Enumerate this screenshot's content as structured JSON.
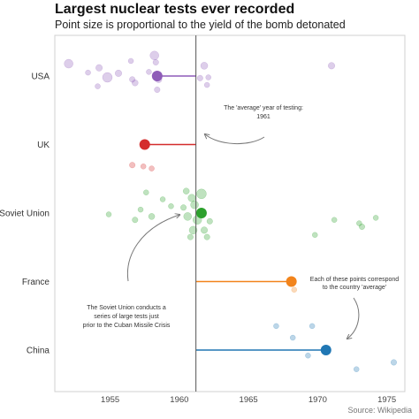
{
  "header": {
    "title": "Largest nuclear tests ever recorded",
    "subtitle": "Point size is proportional to the yield of the bomb detonated",
    "caption": "Source: Wikipedia"
  },
  "annotations": {
    "avg_year_line1": "The 'average' year of testing:",
    "avg_year_line2": "1961",
    "country_avg_line1": "Each of these points correspond",
    "country_avg_line2": "to the country 'average'",
    "soviet_line1": "The Soviet Union conducts a",
    "soviet_line2": "series of large tests just",
    "soviet_line3": "prior to the Cuban Missile Crisis"
  },
  "colors": {
    "USA": "#8e5cb8",
    "UK": "#d42c2c",
    "Soviet Union": "#2ca02c",
    "France": "#f2841c",
    "China": "#2077b4"
  },
  "chart_data": {
    "type": "scatter",
    "title": "Largest nuclear tests ever recorded",
    "subtitle": "Point size is proportional to the yield of the bomb detonated",
    "xlabel": "",
    "ylabel": "",
    "xlim": [
      1951.0,
      1976.3
    ],
    "xticks": [
      1955,
      1960,
      1965,
      1970,
      1975
    ],
    "categories": [
      "USA",
      "UK",
      "Soviet Union",
      "France",
      "China"
    ],
    "overall_average": 1961.2,
    "grid": false,
    "series": [
      {
        "name": "USA",
        "average": 1958.4,
        "points": [
          {
            "x": 1952.0,
            "j": -0.18,
            "s": 2.0
          },
          {
            "x": 1953.4,
            "j": -0.05,
            "s": 1.2
          },
          {
            "x": 1954.2,
            "j": -0.12,
            "s": 1.5
          },
          {
            "x": 1954.8,
            "j": 0.02,
            "s": 2.2
          },
          {
            "x": 1955.6,
            "j": -0.04,
            "s": 1.5
          },
          {
            "x": 1956.5,
            "j": -0.22,
            "s": 1.2
          },
          {
            "x": 1956.6,
            "j": 0.05,
            "s": 1.3
          },
          {
            "x": 1956.8,
            "j": 0.1,
            "s": 1.4
          },
          {
            "x": 1957.8,
            "j": -0.06,
            "s": 1.2
          },
          {
            "x": 1958.2,
            "j": -0.3,
            "s": 2.0
          },
          {
            "x": 1958.3,
            "j": -0.2,
            "s": 1.3
          },
          {
            "x": 1958.5,
            "j": 0.05,
            "s": 1.5
          },
          {
            "x": 1958.4,
            "j": 0.2,
            "s": 1.3
          },
          {
            "x": 1954.1,
            "j": 0.15,
            "s": 1.2
          },
          {
            "x": 1961.8,
            "j": -0.15,
            "s": 1.6
          },
          {
            "x": 1962.1,
            "j": 0.02,
            "s": 1.2
          },
          {
            "x": 1962.0,
            "j": 0.13,
            "s": 1.2
          },
          {
            "x": 1961.5,
            "j": 0.03,
            "s": 1.3
          },
          {
            "x": 1971.0,
            "j": -0.15,
            "s": 1.5
          }
        ]
      },
      {
        "name": "UK",
        "average": 1957.5,
        "points": [
          {
            "x": 1956.6,
            "j": 0.3,
            "s": 1.3
          },
          {
            "x": 1957.4,
            "j": 0.32,
            "s": 1.2
          },
          {
            "x": 1958.0,
            "j": 0.35,
            "s": 1.2
          }
        ]
      },
      {
        "name": "Soviet Union",
        "average": 1961.6,
        "points": [
          {
            "x": 1954.9,
            "j": 0.02,
            "s": 1.2
          },
          {
            "x": 1956.8,
            "j": 0.1,
            "s": 1.3
          },
          {
            "x": 1957.2,
            "j": -0.05,
            "s": 1.2
          },
          {
            "x": 1957.6,
            "j": -0.3,
            "s": 1.2
          },
          {
            "x": 1958.0,
            "j": 0.05,
            "s": 1.4
          },
          {
            "x": 1958.8,
            "j": -0.2,
            "s": 1.2
          },
          {
            "x": 1959.4,
            "j": -0.1,
            "s": 1.2
          },
          {
            "x": 1960.3,
            "j": -0.08,
            "s": 1.3
          },
          {
            "x": 1960.6,
            "j": 0.05,
            "s": 1.8
          },
          {
            "x": 1960.9,
            "j": -0.22,
            "s": 1.7
          },
          {
            "x": 1960.5,
            "j": -0.32,
            "s": 1.4
          },
          {
            "x": 1961.1,
            "j": -0.12,
            "s": 1.8
          },
          {
            "x": 1961.3,
            "j": 0.1,
            "s": 2.0
          },
          {
            "x": 1961.6,
            "j": -0.28,
            "s": 2.2
          },
          {
            "x": 1961.0,
            "j": 0.25,
            "s": 1.8
          },
          {
            "x": 1961.8,
            "j": 0.25,
            "s": 1.5
          },
          {
            "x": 1962.2,
            "j": 0.12,
            "s": 1.3
          },
          {
            "x": 1960.8,
            "j": 0.35,
            "s": 1.3
          },
          {
            "x": 1962.0,
            "j": 0.35,
            "s": 1.3
          },
          {
            "x": 1969.8,
            "j": 0.32,
            "s": 1.2
          },
          {
            "x": 1971.2,
            "j": 0.1,
            "s": 1.2
          },
          {
            "x": 1973.0,
            "j": 0.15,
            "s": 1.2
          },
          {
            "x": 1973.2,
            "j": 0.2,
            "s": 1.3
          },
          {
            "x": 1974.2,
            "j": 0.07,
            "s": 1.2
          }
        ]
      },
      {
        "name": "France",
        "average": 1968.1,
        "points": [
          {
            "x": 1968.3,
            "j": 0.12,
            "s": 1.2
          }
        ]
      },
      {
        "name": "China",
        "average": 1970.6,
        "points": [
          {
            "x": 1967.0,
            "j": -0.35,
            "s": 1.2
          },
          {
            "x": 1968.2,
            "j": -0.18,
            "s": 1.2
          },
          {
            "x": 1969.6,
            "j": -0.35,
            "s": 1.2
          },
          {
            "x": 1969.3,
            "j": 0.08,
            "s": 1.2
          },
          {
            "x": 1972.8,
            "j": 0.28,
            "s": 1.2
          },
          {
            "x": 1975.5,
            "j": 0.18,
            "s": 1.3
          }
        ]
      }
    ]
  }
}
